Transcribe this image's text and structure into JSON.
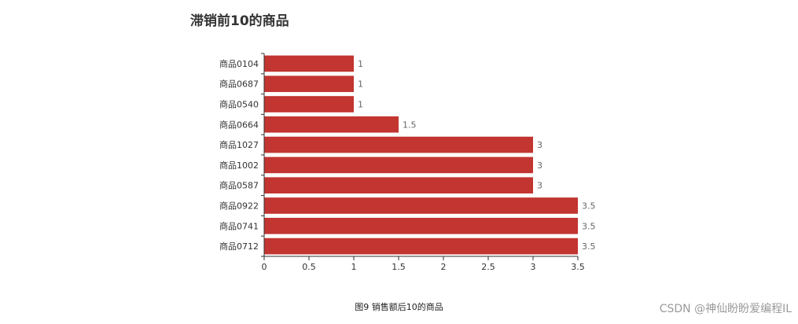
{
  "page": {
    "caption": "图9 销售额后10的商品",
    "watermark": "CSDN @神仙盼盼爱编程IL"
  },
  "colors": {
    "bar": "#c23531",
    "axis": "#333333",
    "tick_label": "#333333",
    "data_label": "#666666",
    "title": "#333333"
  },
  "chart_data": {
    "type": "bar",
    "orientation": "horizontal",
    "title": "滞销前10的商品",
    "xlabel": "",
    "ylabel": "",
    "categories": [
      "商品0104",
      "商品0687",
      "商品0540",
      "商品0664",
      "商品1027",
      "商品1002",
      "商品0587",
      "商品0922",
      "商品0741",
      "商品0712"
    ],
    "values": [
      1,
      1,
      1,
      1.5,
      3,
      3,
      3,
      3.5,
      3.5,
      3.5
    ],
    "value_labels": [
      "1",
      "1",
      "1",
      "1.5",
      "3",
      "3",
      "3",
      "3.5",
      "3.5",
      "3.5"
    ],
    "xlim": [
      0,
      3.5
    ],
    "x_ticks": [
      0,
      0.5,
      1,
      1.5,
      2,
      2.5,
      3,
      3.5
    ],
    "x_tick_labels": [
      "0",
      "0.5",
      "1",
      "1.5",
      "2",
      "2.5",
      "3",
      "3.5"
    ],
    "grid": false,
    "legend": "none"
  }
}
